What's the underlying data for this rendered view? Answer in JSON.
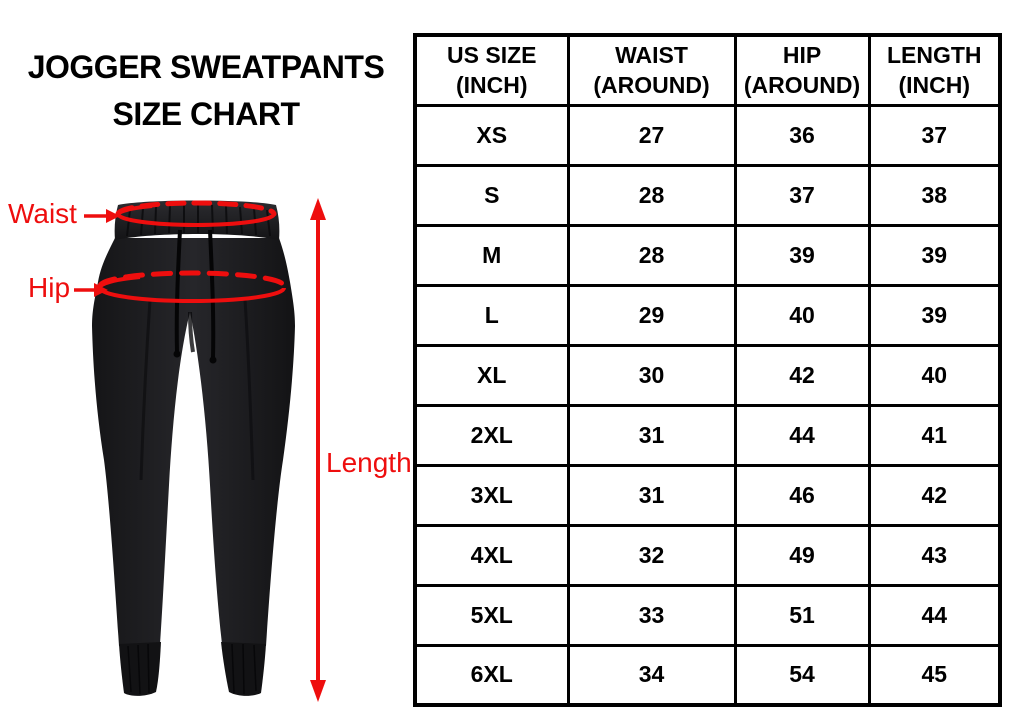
{
  "title": {
    "line1": "JOGGER SWEATPANTS",
    "line2": "SIZE CHART"
  },
  "diagram": {
    "waist_label": "Waist",
    "hip_label": "Hip",
    "length_label": "Length",
    "annotation_color": "#ee0e0e",
    "pants_color": "#1b1b1d"
  },
  "size_table": {
    "columns": [
      {
        "line1": "US SIZE",
        "line2": "(INCH)"
      },
      {
        "line1": "WAIST",
        "line2": "(AROUND)"
      },
      {
        "line1": "HIP",
        "line2": "(AROUND)"
      },
      {
        "line1": "LENGTH",
        "line2": "(INCH)"
      }
    ],
    "rows": [
      {
        "size": "XS",
        "waist": "27",
        "hip": "36",
        "length": "37"
      },
      {
        "size": "S",
        "waist": "28",
        "hip": "37",
        "length": "38"
      },
      {
        "size": "M",
        "waist": "28",
        "hip": "39",
        "length": "39"
      },
      {
        "size": "L",
        "waist": "29",
        "hip": "40",
        "length": "39"
      },
      {
        "size": "XL",
        "waist": "30",
        "hip": "42",
        "length": "40"
      },
      {
        "size": "2XL",
        "waist": "31",
        "hip": "44",
        "length": "41"
      },
      {
        "size": "3XL",
        "waist": "31",
        "hip": "46",
        "length": "42"
      },
      {
        "size": "4XL",
        "waist": "32",
        "hip": "49",
        "length": "43"
      },
      {
        "size": "5XL",
        "waist": "33",
        "hip": "51",
        "length": "44"
      },
      {
        "size": "6XL",
        "waist": "34",
        "hip": "54",
        "length": "45"
      }
    ]
  },
  "chart_data": {
    "type": "table",
    "title": "JOGGER SWEATPANTS SIZE CHART",
    "columns": [
      "US SIZE (INCH)",
      "WAIST (AROUND)",
      "HIP (AROUND)",
      "LENGTH (INCH)"
    ],
    "rows": [
      [
        "XS",
        27,
        36,
        37
      ],
      [
        "S",
        28,
        37,
        38
      ],
      [
        "M",
        28,
        39,
        39
      ],
      [
        "L",
        29,
        40,
        39
      ],
      [
        "XL",
        30,
        42,
        40
      ],
      [
        "2XL",
        31,
        44,
        41
      ],
      [
        "3XL",
        31,
        46,
        42
      ],
      [
        "4XL",
        32,
        49,
        43
      ],
      [
        "5XL",
        33,
        51,
        44
      ],
      [
        "6XL",
        34,
        54,
        45
      ]
    ],
    "units": "inch",
    "measurement_annotations": [
      "Waist",
      "Hip",
      "Length"
    ]
  }
}
